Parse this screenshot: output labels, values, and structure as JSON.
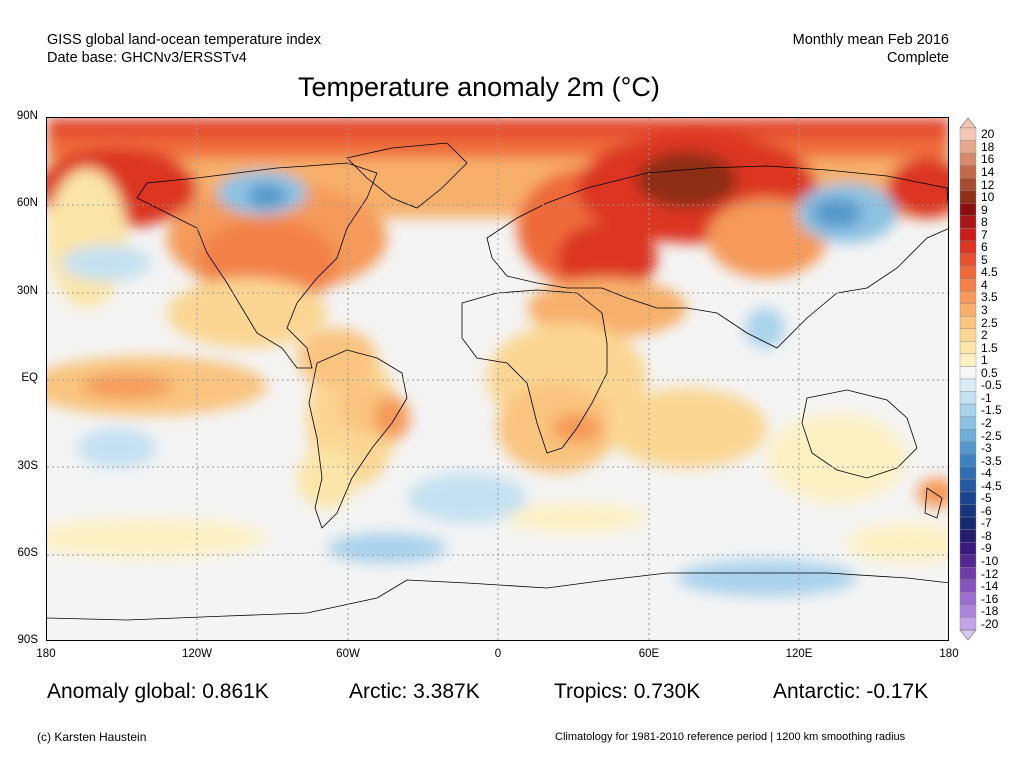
{
  "header": {
    "source_line1": "GISS global land-ocean temperature index",
    "source_line2": "Date base: GHCNv3/ERSSTv4",
    "period_line1": "Monthly mean Feb 2016",
    "period_line2": "Complete"
  },
  "title": "Temperature anomaly 2m (°C)",
  "axes": {
    "y_ticks": [
      "90N",
      "60N",
      "30N",
      "EQ",
      "30S",
      "60S",
      "90S"
    ],
    "x_ticks": [
      "180",
      "120W",
      "60W",
      "0",
      "60E",
      "120E",
      "180"
    ]
  },
  "colorbar": {
    "labels": [
      "20",
      "18",
      "16",
      "14",
      "12",
      "10",
      "9",
      "8",
      "7",
      "6",
      "5",
      "4.5",
      "4",
      "3.5",
      "3",
      "2.5",
      "2",
      "1.5",
      "1",
      "0.5",
      "-0.5",
      "-1",
      "-1.5",
      "-2",
      "-2.5",
      "-3",
      "-3.5",
      "-4",
      "-4.5",
      "-5",
      "-6",
      "-7",
      "-8",
      "-9",
      "-10",
      "-12",
      "-14",
      "-16",
      "-18",
      "-20"
    ],
    "colors": [
      "#f3c6b4",
      "#e6a990",
      "#d88a6c",
      "#c46a4a",
      "#a84a2e",
      "#8e2f18",
      "#8a0f10",
      "#a8161a",
      "#c81e1e",
      "#dc3523",
      "#e7512f",
      "#ee6a3b",
      "#f2824a",
      "#f59a5a",
      "#f7b06c",
      "#f9c47f",
      "#fbd693",
      "#fce5a8",
      "#fdf1c4",
      "#f6f6f6",
      "#dcecf7",
      "#c4e1f2",
      "#a9d2ec",
      "#8dc2e3",
      "#6eaed8",
      "#5498cb",
      "#3f82bd",
      "#306eb0",
      "#2559a0",
      "#1c4590",
      "#17357f",
      "#162a70",
      "#231b6c",
      "#3a1a7c",
      "#55288f",
      "#6e3ea6",
      "#8555bd",
      "#9a6dcf",
      "#ad85dc",
      "#c4a3e8"
    ],
    "top_arrow_color": "#f3c6b4",
    "bottom_arrow_color": "#d8c6f2"
  },
  "stats": {
    "global": "Anomaly global: 0.861K",
    "arctic": "Arctic: 3.387K",
    "tropics": "Tropics: 0.730K",
    "antarctic": "Antarctic: -0.17K"
  },
  "footer": {
    "credit": "(c) Karsten Haustein",
    "note": "Climatology for 1981-2010 reference period | 1200 km smoothing radius"
  }
}
